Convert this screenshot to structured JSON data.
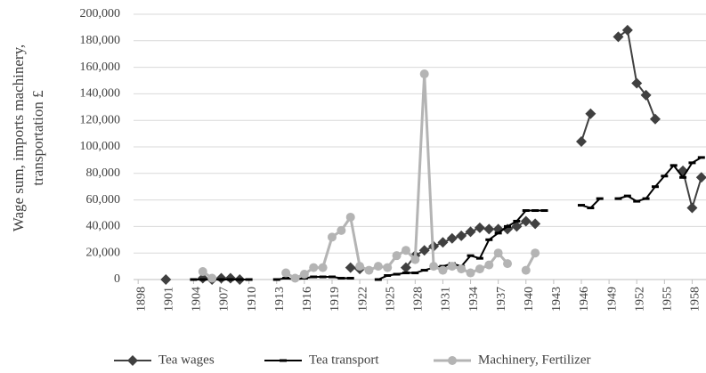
{
  "chart_data": {
    "type": "line",
    "y_label": [
      "Wage sum, imports machinery,",
      "transportation £"
    ],
    "x": [
      1898,
      1899,
      1900,
      1901,
      1902,
      1903,
      1904,
      1905,
      1906,
      1907,
      1908,
      1909,
      1910,
      1911,
      1912,
      1913,
      1914,
      1915,
      1916,
      1917,
      1918,
      1919,
      1920,
      1921,
      1922,
      1923,
      1924,
      1925,
      1926,
      1927,
      1928,
      1929,
      1930,
      1931,
      1932,
      1933,
      1934,
      1935,
      1936,
      1937,
      1938,
      1939,
      1940,
      1941,
      1942,
      1943,
      1944,
      1945,
      1946,
      1947,
      1948,
      1949,
      1950,
      1951,
      1952,
      1953,
      1954,
      1955,
      1956,
      1957,
      1958,
      1959
    ],
    "series": [
      {
        "name": "Tea wages",
        "color": "#404040",
        "marker": "diamond",
        "values": [
          null,
          null,
          null,
          0,
          null,
          null,
          null,
          1000,
          0,
          1000,
          1000,
          0,
          null,
          null,
          null,
          null,
          null,
          null,
          null,
          null,
          null,
          null,
          null,
          9000,
          8000,
          null,
          null,
          null,
          null,
          9000,
          18000,
          22000,
          25000,
          28000,
          31000,
          33000,
          36000,
          39000,
          38000,
          38000,
          38000,
          40000,
          44000,
          42000,
          null,
          null,
          null,
          null,
          104000,
          125000,
          null,
          null,
          183000,
          188000,
          148000,
          139000,
          121000,
          null,
          null,
          82000,
          54000,
          77000
        ]
      },
      {
        "name": "Tea transport",
        "color": "#000000",
        "marker": "dash",
        "values": [
          null,
          null,
          null,
          null,
          null,
          null,
          0,
          0,
          0,
          0,
          0,
          0,
          0,
          null,
          null,
          0,
          1000,
          0,
          1000,
          2000,
          2000,
          2000,
          1000,
          1000,
          null,
          null,
          0,
          3000,
          4000,
          5000,
          5000,
          7000,
          9000,
          10000,
          12000,
          10000,
          18000,
          16000,
          30000,
          35000,
          40000,
          44000,
          52000,
          52000,
          52000,
          null,
          null,
          null,
          56000,
          54000,
          61000,
          null,
          61000,
          63000,
          59000,
          61000,
          70000,
          78000,
          86000,
          77000,
          88000,
          92000
        ]
      },
      {
        "name": "Machinery, Fertilizer",
        "color": "#b4b4b4",
        "marker": "circle",
        "values": [
          null,
          null,
          null,
          null,
          null,
          null,
          null,
          6000,
          1000,
          null,
          null,
          null,
          null,
          null,
          null,
          null,
          5000,
          1000,
          4000,
          9000,
          9000,
          32000,
          37000,
          47000,
          10000,
          7000,
          10000,
          9000,
          18000,
          22000,
          15000,
          155000,
          10000,
          7000,
          10000,
          8000,
          5000,
          8000,
          11000,
          20000,
          12000,
          null,
          7000,
          20000,
          null,
          null,
          null,
          null,
          null,
          null,
          null,
          null,
          null,
          null,
          null,
          null,
          null,
          null,
          null,
          null,
          null,
          null
        ]
      }
    ],
    "xlim": [
      1897.5,
      1959.5
    ],
    "xticks": [
      1898,
      1901,
      1904,
      1907,
      1910,
      1913,
      1916,
      1919,
      1922,
      1925,
      1928,
      1931,
      1934,
      1937,
      1940,
      1943,
      1946,
      1949,
      1952,
      1955,
      1958
    ],
    "ylim": [
      0,
      200000
    ],
    "yticks": [
      {
        "value": 0,
        "label": "0"
      },
      {
        "value": 20000,
        "label": "20,000"
      },
      {
        "value": 40000,
        "label": "40,000"
      },
      {
        "value": 60000,
        "label": "60,000"
      },
      {
        "value": 80000,
        "label": "80,000"
      },
      {
        "value": 100000,
        "label": "100,000"
      },
      {
        "value": 120000,
        "label": "120,000"
      },
      {
        "value": 140000,
        "label": "140,000"
      },
      {
        "value": 160000,
        "label": "160,000"
      },
      {
        "value": 180000,
        "label": "180,000"
      },
      {
        "value": 200000,
        "label": "200,000"
      }
    ],
    "grid": true,
    "legend": "bottom"
  }
}
